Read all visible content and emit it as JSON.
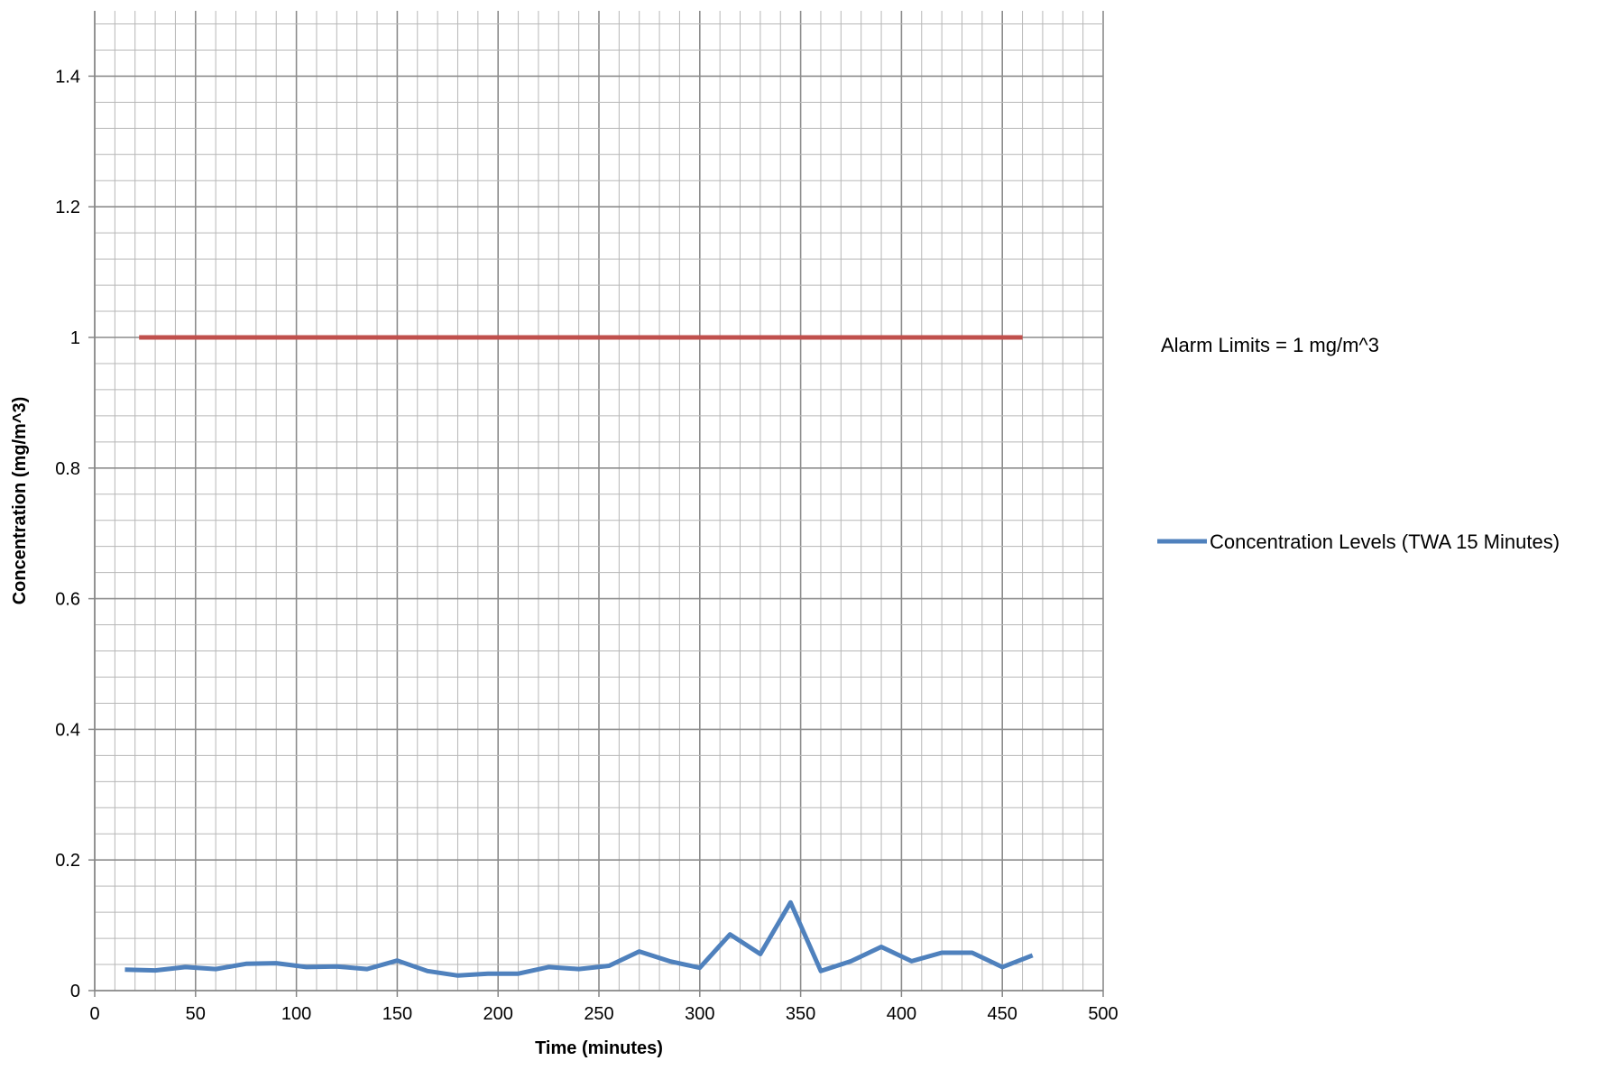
{
  "chart_data": {
    "type": "line",
    "xlabel": "Time (minutes)",
    "ylabel": "Concentration (mg/m^3)",
    "xlim": [
      0,
      500
    ],
    "ylim": [
      0,
      1.5
    ],
    "x_ticks": [
      0,
      50,
      100,
      150,
      200,
      250,
      300,
      350,
      400,
      450,
      500
    ],
    "y_ticks": [
      0,
      0.2,
      0.4,
      0.6,
      0.8,
      1,
      1.2,
      1.4
    ],
    "y_tick_labels": [
      "0",
      "0.2",
      "0.4",
      "0.6",
      "0.8",
      "1",
      "1.2",
      "1.4"
    ],
    "grid": true,
    "legend_position": "right",
    "series": [
      {
        "name": "Concentration Levels (TWA 15 Minutes)",
        "color": "#4f81bd",
        "x": [
          15,
          30,
          45,
          60,
          75,
          90,
          105,
          120,
          135,
          150,
          165,
          180,
          195,
          210,
          225,
          240,
          255,
          270,
          285,
          300,
          315,
          330,
          345,
          360,
          375,
          390,
          405,
          420,
          435,
          450,
          465
        ],
        "y": [
          0.032,
          0.031,
          0.036,
          0.033,
          0.041,
          0.042,
          0.036,
          0.037,
          0.033,
          0.046,
          0.03,
          0.023,
          0.026,
          0.026,
          0.036,
          0.033,
          0.038,
          0.06,
          0.045,
          0.035,
          0.086,
          0.056,
          0.135,
          0.03,
          0.045,
          0.067,
          0.045,
          0.058,
          0.058,
          0.036,
          0.054
        ]
      },
      {
        "name": "Alarm Limits = 1 mg/m^3",
        "color": "#c0504d",
        "x": [
          22,
          460
        ],
        "y": [
          1,
          1
        ]
      }
    ]
  }
}
